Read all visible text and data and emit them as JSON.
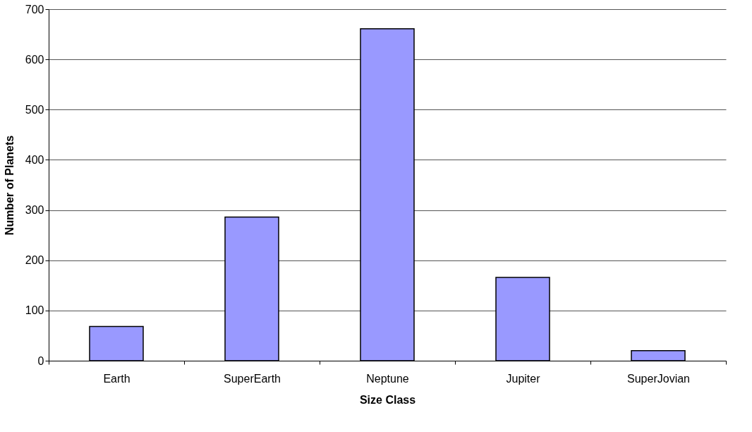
{
  "chart_data": {
    "type": "bar",
    "xlabel": "Size Class",
    "ylabel": "Number of Planets",
    "categories": [
      "Earth",
      "SuperEarth",
      "Neptune",
      "Jupiter",
      "SuperJovian"
    ],
    "values": [
      68,
      286,
      661,
      166,
      20
    ],
    "color": "#9999ff",
    "ylim": [
      0,
      700
    ],
    "yticks": [
      0,
      100,
      200,
      300,
      400,
      500,
      600,
      700
    ],
    "grid": "y"
  }
}
